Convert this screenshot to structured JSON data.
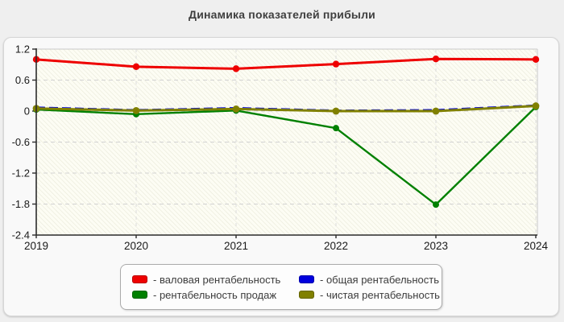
{
  "chart_data": {
    "type": "line",
    "title": "Динамика показателей прибыли",
    "x": [
      "2019",
      "2020",
      "2021",
      "2022",
      "2023",
      "2024"
    ],
    "y_ticks": [
      1.2,
      0.6,
      0,
      -0.6,
      -1.2,
      -1.8,
      -2.4
    ],
    "y_tick_labels": [
      "1.2",
      "0.6",
      "0",
      "-0.6",
      "-1.2",
      "-1.8",
      "-2.4"
    ],
    "ylim": [
      -2.4,
      1.2
    ],
    "grid": "dashed-horizontal-and-vertical",
    "plot_background": "diagonal-hatch",
    "legend_position": "bottom",
    "colors": {
      "plot_hatch_light": "#fdfdf4",
      "plot_hatch_dark": "#e9e9da",
      "gridline": "#d2d2d2",
      "axis": "#2b2b2b",
      "tick_label": "#1a1a1a"
    },
    "series": [
      {
        "key": "gross-margin",
        "legend_label": "- валовая рентабельность",
        "color": "#ee0000",
        "line_style": "solid",
        "marker": "circle",
        "values": [
          1.0,
          0.86,
          0.82,
          0.91,
          1.01,
          1.0
        ]
      },
      {
        "key": "overall-margin",
        "legend_label": "- общая рентабельность",
        "color": "#0000dd",
        "line_style": "dashed",
        "marker": "none",
        "values": [
          0.07,
          0.02,
          0.06,
          0.01,
          0.02,
          0.11
        ]
      },
      {
        "key": "sales-margin",
        "legend_label": "- рентабельность продаж",
        "color": "#008000",
        "line_style": "solid",
        "marker": "circle",
        "values": [
          0.03,
          -0.06,
          0.01,
          -0.33,
          -1.81,
          0.08
        ]
      },
      {
        "key": "net-margin",
        "legend_label": "- чистая рентабельность",
        "color": "#808000",
        "line_style": "solid",
        "marker": "circle",
        "values": [
          0.05,
          0.01,
          0.04,
          0.0,
          0.0,
          0.1
        ]
      }
    ]
  }
}
